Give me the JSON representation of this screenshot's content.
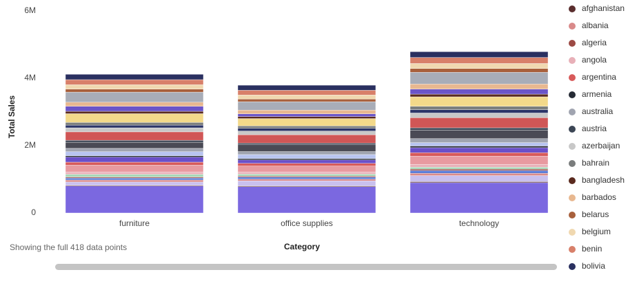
{
  "chart_data": {
    "type": "stacked_bar",
    "y_label": "Total Sales",
    "x_label": "Category",
    "note": "Showing the full 418 data points",
    "categories": [
      "furniture",
      "office supplies",
      "technology"
    ],
    "ylim": [
      0,
      6000000
    ],
    "yticks": [
      0,
      {
        "value": 2000000,
        "label": "2M"
      },
      {
        "value": 4000000,
        "label": "4M"
      },
      {
        "value": 6000000,
        "label": "6M"
      }
    ],
    "series": [
      {
        "name": null,
        "color": "#7b68e0",
        "values": [
          800000,
          780000,
          900000
        ]
      },
      {
        "name": "afghanistan",
        "color": "#5a2e2e",
        "values": [
          20000,
          25000,
          30000
        ]
      },
      {
        "name": null,
        "color": "#c9c0ee",
        "values": [
          100000,
          150000,
          180000
        ]
      },
      {
        "name": "albania",
        "color": "#d98a8a",
        "values": [
          60000,
          50000,
          70000
        ]
      },
      {
        "name": null,
        "color": "#5b7bd6",
        "values": [
          60000,
          60000,
          80000
        ]
      },
      {
        "name": "algeria",
        "color": "#9c4a44",
        "values": [
          30000,
          30000,
          40000
        ]
      },
      {
        "name": null,
        "color": "#a8d8b8",
        "values": [
          80000,
          60000,
          60000
        ]
      },
      {
        "name": "angola",
        "color": "#e8b0b8",
        "values": [
          70000,
          60000,
          80000
        ]
      },
      {
        "name": null,
        "color": "#e89aa0",
        "values": [
          200000,
          180000,
          250000
        ]
      },
      {
        "name": "argentina",
        "color": "#d85a5a",
        "values": [
          90000,
          80000,
          100000
        ]
      },
      {
        "name": null,
        "color": "#6a4fc9",
        "values": [
          150000,
          100000,
          150000
        ]
      },
      {
        "name": "armenia",
        "color": "#252a35",
        "values": [
          40000,
          40000,
          50000
        ]
      },
      {
        "name": null,
        "color": "#b8c4f0",
        "values": [
          120000,
          120000,
          100000
        ]
      },
      {
        "name": "australia",
        "color": "#a0a4b0",
        "values": [
          100000,
          90000,
          120000
        ]
      },
      {
        "name": null,
        "color": "#4a4a55",
        "values": [
          180000,
          200000,
          250000
        ]
      },
      {
        "name": "austria",
        "color": "#3c4655",
        "values": [
          60000,
          50000,
          70000
        ]
      },
      {
        "name": null,
        "color": "#d05656",
        "values": [
          250000,
          250000,
          300000
        ]
      },
      {
        "name": "azerbaijan",
        "color": "#c8c8c8",
        "values": [
          120000,
          110000,
          140000
        ]
      },
      {
        "name": null,
        "color": "#2c3568",
        "values": [
          80000,
          80000,
          100000
        ]
      },
      {
        "name": "bahrain",
        "color": "#7a7d7d",
        "values": [
          80000,
          70000,
          100000
        ]
      },
      {
        "name": null,
        "color": "#f3d98a",
        "values": [
          260000,
          220000,
          280000
        ]
      },
      {
        "name": "bangladesh",
        "color": "#5a2a1e",
        "values": [
          70000,
          60000,
          80000
        ]
      },
      {
        "name": null,
        "color": "#6b55c8",
        "values": [
          150000,
          80000,
          150000
        ]
      },
      {
        "name": "barbados",
        "color": "#e8b890",
        "values": [
          120000,
          110000,
          150000
        ]
      },
      {
        "name": null,
        "color": "#a8adb8",
        "values": [
          300000,
          250000,
          350000
        ]
      },
      {
        "name": "belarus",
        "color": "#a8603c",
        "values": [
          90000,
          80000,
          110000
        ]
      },
      {
        "name": "belgium",
        "color": "#f0d8b0",
        "values": [
          130000,
          120000,
          150000
        ]
      },
      {
        "name": "benin",
        "color": "#d8806a",
        "values": [
          150000,
          140000,
          180000
        ]
      },
      {
        "name": "bolivia",
        "color": "#2a3060",
        "values": [
          160000,
          150000,
          170000
        ]
      }
    ]
  }
}
